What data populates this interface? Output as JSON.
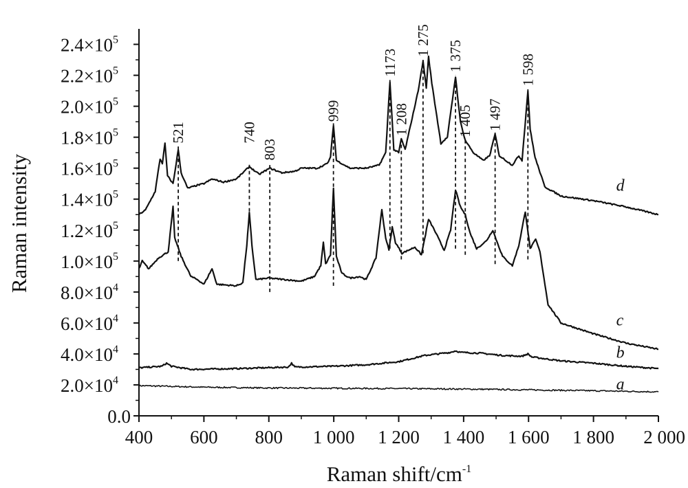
{
  "chart_data": {
    "type": "line",
    "xlabel": "Raman shift/cm",
    "xlabel_sup": "-1",
    "ylabel": "Raman intensity",
    "xlim": [
      400,
      2000
    ],
    "ylim": [
      0,
      250000
    ],
    "x_ticks": [
      {
        "value": 400,
        "label": "400"
      },
      {
        "value": 600,
        "label": "600"
      },
      {
        "value": 800,
        "label": "800"
      },
      {
        "value": 1000,
        "label": "1 000"
      },
      {
        "value": 1200,
        "label": "1 200"
      },
      {
        "value": 1400,
        "label": "1 400"
      },
      {
        "value": 1600,
        "label": "1 600"
      },
      {
        "value": 1800,
        "label": "1 800"
      },
      {
        "value": 2000,
        "label": "2 000"
      }
    ],
    "y_ticks": [
      {
        "value": 0,
        "mant": "0.0",
        "exp": ""
      },
      {
        "value": 20000,
        "mant": "2.0×10",
        "exp": "4"
      },
      {
        "value": 40000,
        "mant": "4.0×10",
        "exp": "4"
      },
      {
        "value": 60000,
        "mant": "6.0×10",
        "exp": "4"
      },
      {
        "value": 80000,
        "mant": "8.0×10",
        "exp": "4"
      },
      {
        "value": 100000,
        "mant": "1.0×10",
        "exp": "5"
      },
      {
        "value": 120000,
        "mant": "1.2×10",
        "exp": "5"
      },
      {
        "value": 140000,
        "mant": "1.4×10",
        "exp": "5"
      },
      {
        "value": 160000,
        "mant": "1.6×10",
        "exp": "5"
      },
      {
        "value": 180000,
        "mant": "1.8×10",
        "exp": "5"
      },
      {
        "value": 200000,
        "mant": "2.0×10",
        "exp": "5"
      },
      {
        "value": 220000,
        "mant": "2.2×10",
        "exp": "5"
      },
      {
        "value": 240000,
        "mant": "2.4×10",
        "exp": "5"
      }
    ],
    "series": [
      {
        "name": "a",
        "label_at": [
          1870,
          17000
        ],
        "points": [
          [
            400,
            19500
          ],
          [
            600,
            18500
          ],
          [
            800,
            18000
          ],
          [
            1000,
            17800
          ],
          [
            1200,
            17600
          ],
          [
            1400,
            17300
          ],
          [
            1600,
            16800
          ],
          [
            1800,
            16200
          ],
          [
            2000,
            15500
          ]
        ]
      },
      {
        "name": "b",
        "label_at": [
          1870,
          37500
        ],
        "points": [
          [
            400,
            31000
          ],
          [
            470,
            32000
          ],
          [
            485,
            34000
          ],
          [
            500,
            32000
          ],
          [
            560,
            30000
          ],
          [
            700,
            30500
          ],
          [
            860,
            31500
          ],
          [
            870,
            34000
          ],
          [
            880,
            31500
          ],
          [
            1000,
            32000
          ],
          [
            1100,
            33000
          ],
          [
            1200,
            35000
          ],
          [
            1280,
            39000
          ],
          [
            1300,
            39500
          ],
          [
            1360,
            41000
          ],
          [
            1375,
            42000
          ],
          [
            1390,
            41000
          ],
          [
            1450,
            40500
          ],
          [
            1520,
            39000
          ],
          [
            1580,
            38500
          ],
          [
            1598,
            40000
          ],
          [
            1610,
            38000
          ],
          [
            1700,
            35500
          ],
          [
            1800,
            34000
          ],
          [
            1900,
            32000
          ],
          [
            2000,
            30500
          ]
        ]
      },
      {
        "name": "c",
        "label_at": [
          1870,
          58500
        ],
        "points": [
          [
            400,
            95000
          ],
          [
            410,
            100000
          ],
          [
            430,
            95000
          ],
          [
            460,
            102000
          ],
          [
            490,
            106000
          ],
          [
            505,
            135000
          ],
          [
            510,
            115000
          ],
          [
            530,
            103000
          ],
          [
            560,
            90000
          ],
          [
            570,
            89000
          ],
          [
            580,
            88000
          ],
          [
            600,
            85000
          ],
          [
            625,
            95000
          ],
          [
            640,
            85000
          ],
          [
            700,
            84000
          ],
          [
            720,
            86000
          ],
          [
            732,
            110000
          ],
          [
            740,
            131000
          ],
          [
            748,
            110000
          ],
          [
            760,
            88000
          ],
          [
            800,
            89000
          ],
          [
            850,
            88000
          ],
          [
            900,
            87000
          ],
          [
            940,
            90000
          ],
          [
            960,
            97000
          ],
          [
            968,
            112000
          ],
          [
            975,
            98000
          ],
          [
            990,
            104000
          ],
          [
            999,
            147000
          ],
          [
            1008,
            103000
          ],
          [
            1025,
            92000
          ],
          [
            1050,
            89000
          ],
          [
            1080,
            90000
          ],
          [
            1100,
            88000
          ],
          [
            1130,
            102000
          ],
          [
            1148,
            133000
          ],
          [
            1160,
            115000
          ],
          [
            1170,
            107000
          ],
          [
            1180,
            122000
          ],
          [
            1190,
            112000
          ],
          [
            1210,
            105000
          ],
          [
            1250,
            109000
          ],
          [
            1270,
            104000
          ],
          [
            1292,
            127000
          ],
          [
            1310,
            120000
          ],
          [
            1340,
            107000
          ],
          [
            1360,
            120000
          ],
          [
            1375,
            146000
          ],
          [
            1390,
            135000
          ],
          [
            1405,
            130000
          ],
          [
            1420,
            118000
          ],
          [
            1440,
            108000
          ],
          [
            1470,
            113000
          ],
          [
            1490,
            120000
          ],
          [
            1500,
            114000
          ],
          [
            1520,
            103000
          ],
          [
            1550,
            97000
          ],
          [
            1570,
            110000
          ],
          [
            1590,
            132000
          ],
          [
            1605,
            108000
          ],
          [
            1622,
            114000
          ],
          [
            1635,
            106000
          ],
          [
            1660,
            72000
          ],
          [
            1700,
            60000
          ],
          [
            1800,
            53000
          ],
          [
            1900,
            47000
          ],
          [
            2000,
            43000
          ]
        ]
      },
      {
        "name": "d",
        "label_at": [
          1870,
          145500
        ],
        "points": [
          [
            400,
            130000
          ],
          [
            420,
            133000
          ],
          [
            450,
            145000
          ],
          [
            465,
            166000
          ],
          [
            472,
            163000
          ],
          [
            480,
            176000
          ],
          [
            488,
            155000
          ],
          [
            505,
            150000
          ],
          [
            521,
            172000
          ],
          [
            530,
            157000
          ],
          [
            550,
            147000
          ],
          [
            580,
            149000
          ],
          [
            600,
            150000
          ],
          [
            625,
            153000
          ],
          [
            660,
            151000
          ],
          [
            700,
            153000
          ],
          [
            740,
            161000
          ],
          [
            770,
            156000
          ],
          [
            803,
            160000
          ],
          [
            840,
            157000
          ],
          [
            880,
            158000
          ],
          [
            900,
            160000
          ],
          [
            950,
            160000
          ],
          [
            980,
            163000
          ],
          [
            990,
            167000
          ],
          [
            999,
            188000
          ],
          [
            1008,
            165000
          ],
          [
            1050,
            160000
          ],
          [
            1100,
            160000
          ],
          [
            1140,
            162000
          ],
          [
            1160,
            170000
          ],
          [
            1173,
            216000
          ],
          [
            1185,
            172000
          ],
          [
            1200,
            170000
          ],
          [
            1208,
            179000
          ],
          [
            1220,
            172000
          ],
          [
            1260,
            210000
          ],
          [
            1275,
            229000
          ],
          [
            1285,
            212000
          ],
          [
            1292,
            232000
          ],
          [
            1302,
            215000
          ],
          [
            1330,
            176000
          ],
          [
            1350,
            180000
          ],
          [
            1375,
            219000
          ],
          [
            1390,
            190000
          ],
          [
            1405,
            178000
          ],
          [
            1430,
            170000
          ],
          [
            1460,
            165000
          ],
          [
            1480,
            168000
          ],
          [
            1497,
            182000
          ],
          [
            1510,
            168000
          ],
          [
            1550,
            162000
          ],
          [
            1570,
            168000
          ],
          [
            1580,
            165000
          ],
          [
            1598,
            210000
          ],
          [
            1605,
            185000
          ],
          [
            1620,
            167000
          ],
          [
            1650,
            148000
          ],
          [
            1700,
            142000
          ],
          [
            1800,
            139000
          ],
          [
            1900,
            135000
          ],
          [
            2000,
            130000
          ]
        ]
      }
    ],
    "peaks": [
      {
        "label": "521",
        "x": 521,
        "line_from": 100000,
        "line_to": 174000,
        "label_y": 176000,
        "rotate": true
      },
      {
        "label": "740",
        "x": 740,
        "line_from": 132000,
        "line_to": 163000,
        "label_y": 176000,
        "rotate": true
      },
      {
        "label": "803",
        "x": 803,
        "line_from": 80000,
        "line_to": 162000,
        "label_y": 165000,
        "rotate": true
      },
      {
        "label": "999",
        "x": 999,
        "line_from": 84000,
        "line_to": 189000,
        "label_y": 190000,
        "rotate": true
      },
      {
        "label": "1173",
        "x": 1173,
        "line_from": 108000,
        "line_to": 217000,
        "label_y": 219000,
        "rotate": true
      },
      {
        "label": "1 208",
        "x": 1208,
        "line_from": 101000,
        "line_to": 180000,
        "label_y": 181000,
        "rotate": true
      },
      {
        "label": "1 275",
        "x": 1275,
        "line_from": 105000,
        "line_to": 230000,
        "label_y": 232000,
        "rotate": true
      },
      {
        "label": "1 375",
        "x": 1375,
        "line_from": 108000,
        "line_to": 220000,
        "label_y": 222000,
        "rotate": true
      },
      {
        "label": "1 405",
        "x": 1405,
        "line_from": 104000,
        "line_to": 179000,
        "label_y": 180000,
        "rotate": true
      },
      {
        "label": "1 497",
        "x": 1497,
        "line_from": 98000,
        "line_to": 183000,
        "label_y": 184000,
        "rotate": true
      },
      {
        "label": "1 598",
        "x": 1598,
        "line_from": 101000,
        "line_to": 211000,
        "label_y": 213000,
        "rotate": true
      }
    ],
    "grid": false,
    "legend": "none"
  }
}
